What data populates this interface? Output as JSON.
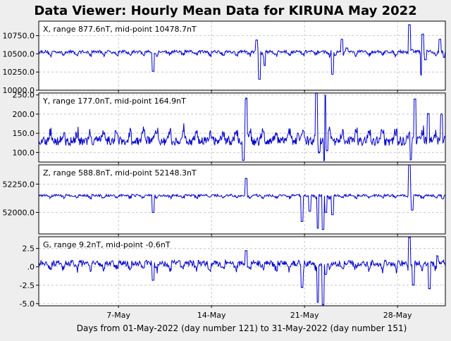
{
  "chart_data": {
    "type": "line",
    "title": "Data Viewer:  Hourly Mean Data for KIRUNA May 2022",
    "xlabel": "Days from 01-May-2022 (day number 121) to 31-May-2022 (day number 151)",
    "x_range_days": [
      1,
      31.6
    ],
    "x_ticks": [
      {
        "day": 7,
        "label": "7-May"
      },
      {
        "day": 14,
        "label": "14-May"
      },
      {
        "day": 21,
        "label": "21-May"
      },
      {
        "day": 28,
        "label": "28-May"
      }
    ],
    "grid": true,
    "line_color": "#0000cc",
    "panels": [
      {
        "id": "x",
        "label": "X, range 877.6nT, mid-point 10478.7nT",
        "ylim": [
          10000,
          10950
        ],
        "yticks": [
          {
            "v": 10000,
            "label": "10000.0"
          },
          {
            "v": 10250,
            "label": "10250.0"
          },
          {
            "v": 10500,
            "label": "10500.0"
          },
          {
            "v": 10750,
            "label": "10750.0"
          }
        ],
        "series": {
          "baseline": 10530,
          "mid": 10478.7,
          "range": 877.6,
          "daily": -45,
          "noise": 20,
          "storm": 1.0
        },
        "points": [
          [
            9.6,
            10260
          ],
          [
            17.4,
            10690
          ],
          [
            17.6,
            10150
          ],
          [
            18.0,
            10340
          ],
          [
            23.8,
            10700
          ],
          [
            24.2,
            10580
          ],
          [
            29.8,
            10210
          ],
          [
            29.9,
            10770
          ],
          [
            23.1,
            10220
          ],
          [
            23.3,
            10480
          ],
          [
            28.9,
            10900
          ],
          [
            29.1,
            10560
          ],
          [
            30.1,
            10420
          ],
          [
            31.2,
            10700
          ],
          [
            31.5,
            10450
          ]
        ]
      },
      {
        "id": "y",
        "label": "Y, range 177.0nT, mid-point 164.9nT",
        "ylim": [
          75,
          255
        ],
        "yticks": [
          {
            "v": 100,
            "label": "100.0"
          },
          {
            "v": 150,
            "label": "150.0"
          },
          {
            "v": 200,
            "label": "200.0"
          },
          {
            "v": 250,
            "label": "250.0"
          }
        ],
        "series": {
          "baseline": 130,
          "mid": 164.9,
          "range": 177.0,
          "daily": 25,
          "noise": 12,
          "storm": 1.0
        },
        "points": [
          [
            16.4,
            80
          ],
          [
            16.6,
            240
          ],
          [
            20.5,
            150
          ],
          [
            21.9,
            255
          ],
          [
            22.1,
            100
          ],
          [
            22.5,
            80
          ],
          [
            22.6,
            250
          ],
          [
            22.7,
            105
          ],
          [
            29.0,
            80
          ],
          [
            29.3,
            240
          ],
          [
            30.3,
            200
          ],
          [
            31.3,
            200
          ]
        ]
      },
      {
        "id": "z",
        "label": "Z, range 588.8nT, mid-point 52148.3nT",
        "ylim": [
          51810,
          52420
        ],
        "yticks": [
          {
            "v": 52000,
            "label": "52000.0"
          },
          {
            "v": 52250,
            "label": "52250.0"
          }
        ],
        "series": {
          "baseline": 52150,
          "mid": 52148.3,
          "range": 588.8,
          "daily": -20,
          "noise": 10,
          "storm": 1.0
        },
        "points": [
          [
            9.6,
            52000
          ],
          [
            16.6,
            52300
          ],
          [
            20.8,
            51920
          ],
          [
            21.4,
            52010
          ],
          [
            22.0,
            51860
          ],
          [
            22.4,
            51850
          ],
          [
            22.6,
            52000
          ],
          [
            23.1,
            51980
          ],
          [
            28.9,
            52420
          ],
          [
            29.1,
            52020
          ],
          [
            31.4,
            52120
          ]
        ]
      },
      {
        "id": "g",
        "label": "G, range 9.2nT, mid-point -0.6nT",
        "ylim": [
          -5.3,
          4.1
        ],
        "yticks": [
          {
            "v": -5,
            "label": "-5.0"
          },
          {
            "v": -2.5,
            "label": "-2.5"
          },
          {
            "v": 0,
            "label": ".0"
          },
          {
            "v": 2.5,
            "label": "2.5"
          }
        ],
        "series": {
          "baseline": 0.5,
          "mid": -0.6,
          "range": 9.2,
          "daily": -0.8,
          "noise": 0.4,
          "storm": 1.0
        },
        "points": [
          [
            9.6,
            -1.8
          ],
          [
            16.6,
            2.2
          ],
          [
            20.8,
            -2.8
          ],
          [
            22.0,
            -4.8
          ],
          [
            22.4,
            -5.2
          ],
          [
            22.6,
            -1.0
          ],
          [
            28.9,
            4.0
          ],
          [
            29.2,
            -2.5
          ],
          [
            30.4,
            -3.0
          ],
          [
            31.0,
            1.5
          ]
        ]
      }
    ]
  }
}
